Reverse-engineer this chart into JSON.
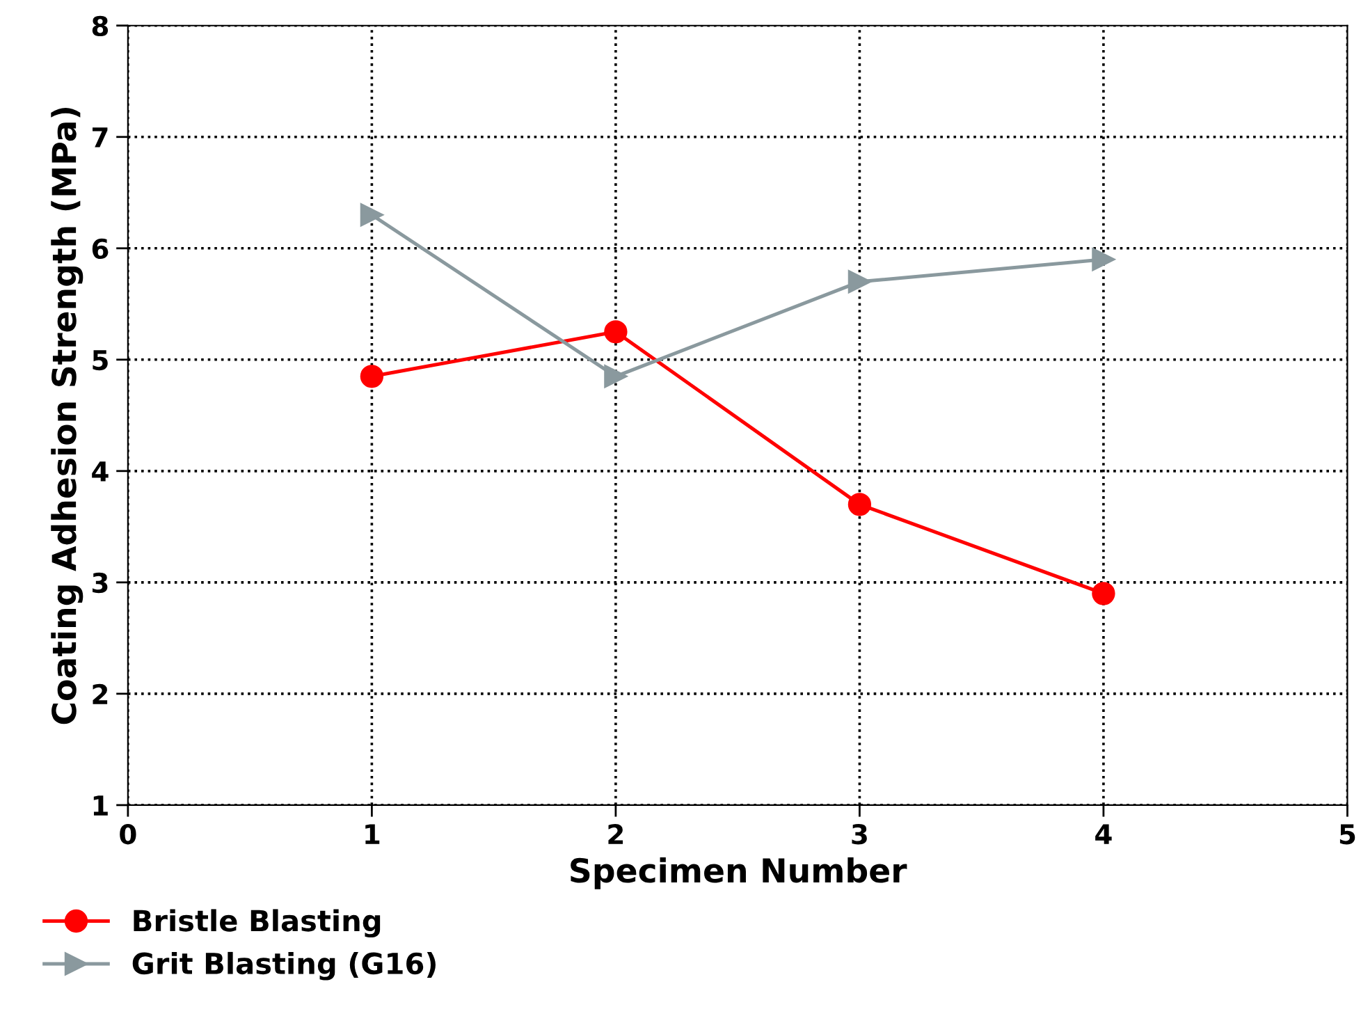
{
  "chart_data": {
    "type": "line",
    "xlabel": "Specimen Number",
    "ylabel": "Coating Adhesion Strength (MPa)",
    "xlim": [
      0,
      5
    ],
    "xticks": [
      0,
      1,
      2,
      3,
      4,
      5
    ],
    "ylim": [
      1,
      8
    ],
    "yticks": [
      1,
      2,
      3,
      4,
      5,
      6,
      7,
      8
    ],
    "grid": true,
    "legend": "bottom left",
    "line_style": "solid",
    "series": [
      {
        "name": "Bristle Blasting",
        "color": "#ff0000",
        "marker": "circle",
        "x": [
          1,
          2,
          3,
          4
        ],
        "values": [
          4.85,
          5.25,
          3.7,
          2.9
        ]
      },
      {
        "name": "Grit Blasting (G16)",
        "color": "#8a999e",
        "marker": "triangle",
        "x": [
          1,
          2,
          3,
          4
        ],
        "values": [
          6.3,
          4.85,
          5.7,
          5.9
        ]
      }
    ]
  }
}
